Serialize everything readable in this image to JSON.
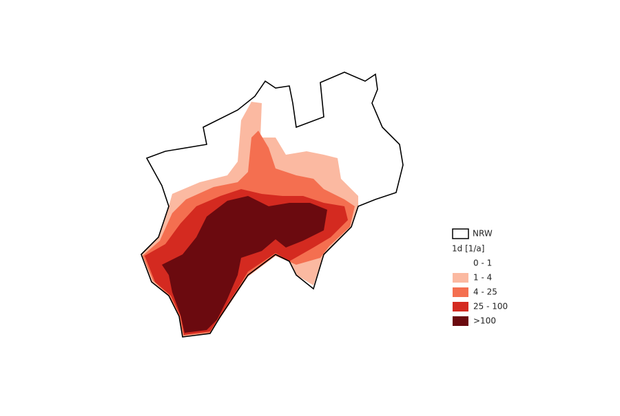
{
  "legend": {
    "outline_label": "NRW",
    "title": "1d [1/a]",
    "classes": [
      {
        "label": "0 - 1",
        "color": "#ffffff"
      },
      {
        "label": "1 - 4",
        "color": "#fbb9a1"
      },
      {
        "label": "4 - 25",
        "color": "#f46f50"
      },
      {
        "label": "25 - 100",
        "color": "#d42a20"
      },
      {
        "label": ">100",
        "color": "#6b0a0f"
      }
    ]
  }
}
